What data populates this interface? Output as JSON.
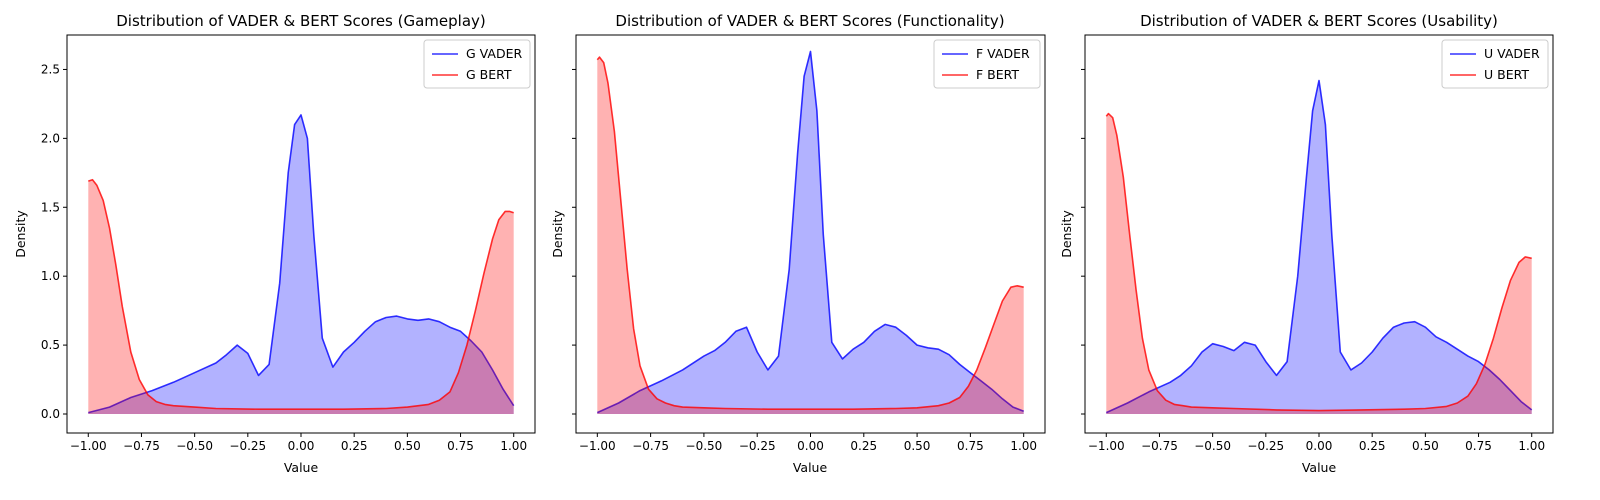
{
  "figure": {
    "panels": [
      {
        "title": "Distribution of VADER & BERT Scores (Gameplay)",
        "xlabel": "Value",
        "ylabel": "Density"
      },
      {
        "title": "Distribution of VADER & BERT Scores (Functionality)",
        "xlabel": "Value",
        "ylabel": "Density"
      },
      {
        "title": "Distribution of VADER & BERT Scores (Usability)",
        "xlabel": "Value",
        "ylabel": "Density"
      }
    ]
  },
  "chart_data": [
    {
      "type": "area",
      "title": "Distribution of VADER & BERT Scores (Gameplay)",
      "xlabel": "Value",
      "ylabel": "Density",
      "xlim": [
        -1.0,
        1.0
      ],
      "ylim": [
        0.0,
        2.75
      ],
      "xticks": [
        -1.0,
        -0.75,
        -0.5,
        -0.25,
        0.0,
        0.25,
        0.5,
        0.75,
        1.0
      ],
      "xtick_labels": [
        "−1.00",
        "−0.75",
        "−0.50",
        "−0.25",
        "0.00",
        "0.25",
        "0.50",
        "0.75",
        "1.00"
      ],
      "yticks": [
        0.0,
        0.5,
        1.0,
        1.5,
        2.0,
        2.5
      ],
      "ytick_labels": [
        "0.0",
        "0.5",
        "1.0",
        "1.5",
        "2.0",
        "2.5"
      ],
      "legend": "top-right",
      "grid": false,
      "series": [
        {
          "name": "G VADER",
          "color": "#0000ff",
          "fill": "#0000ff",
          "x": [
            -1.0,
            -0.9,
            -0.8,
            -0.7,
            -0.6,
            -0.5,
            -0.4,
            -0.35,
            -0.3,
            -0.25,
            -0.2,
            -0.15,
            -0.1,
            -0.06,
            -0.03,
            0.0,
            0.03,
            0.06,
            0.1,
            0.15,
            0.2,
            0.25,
            0.3,
            0.35,
            0.4,
            0.45,
            0.5,
            0.55,
            0.6,
            0.65,
            0.7,
            0.75,
            0.8,
            0.85,
            0.9,
            0.95,
            1.0
          ],
          "y": [
            0.01,
            0.05,
            0.12,
            0.17,
            0.23,
            0.3,
            0.37,
            0.43,
            0.5,
            0.44,
            0.28,
            0.36,
            0.95,
            1.75,
            2.1,
            2.17,
            2.0,
            1.3,
            0.55,
            0.34,
            0.45,
            0.52,
            0.6,
            0.67,
            0.7,
            0.71,
            0.69,
            0.68,
            0.69,
            0.67,
            0.63,
            0.6,
            0.53,
            0.45,
            0.32,
            0.18,
            0.06
          ]
        },
        {
          "name": "G BERT",
          "color": "#ff0000",
          "fill": "#ff0000",
          "x": [
            -1.0,
            -0.98,
            -0.96,
            -0.93,
            -0.9,
            -0.87,
            -0.84,
            -0.8,
            -0.76,
            -0.72,
            -0.68,
            -0.64,
            -0.6,
            -0.5,
            -0.4,
            -0.2,
            0.0,
            0.2,
            0.4,
            0.5,
            0.6,
            0.65,
            0.7,
            0.74,
            0.78,
            0.82,
            0.86,
            0.9,
            0.93,
            0.96,
            0.98,
            1.0
          ],
          "y": [
            1.69,
            1.7,
            1.66,
            1.55,
            1.35,
            1.08,
            0.78,
            0.45,
            0.25,
            0.14,
            0.09,
            0.07,
            0.06,
            0.05,
            0.04,
            0.035,
            0.035,
            0.035,
            0.04,
            0.05,
            0.07,
            0.1,
            0.16,
            0.3,
            0.5,
            0.75,
            1.02,
            1.27,
            1.41,
            1.47,
            1.47,
            1.46
          ]
        }
      ]
    },
    {
      "type": "area",
      "title": "Distribution of VADER & BERT Scores (Functionality)",
      "xlabel": "Value",
      "ylabel": "Density",
      "xlim": [
        -1.0,
        1.0
      ],
      "ylim": [
        0.0,
        2.75
      ],
      "xticks": [
        -1.0,
        -0.75,
        -0.5,
        -0.25,
        0.0,
        0.25,
        0.5,
        0.75,
        1.0
      ],
      "xtick_labels": [
        "−1.00",
        "−0.75",
        "−0.50",
        "−0.25",
        "0.00",
        "0.25",
        "0.50",
        "0.75",
        "1.00"
      ],
      "yticks": [
        0.0,
        0.5,
        1.0,
        1.5,
        2.0,
        2.5
      ],
      "ytick_labels": [],
      "legend": "top-right",
      "grid": false,
      "series": [
        {
          "name": "F VADER",
          "color": "#0000ff",
          "fill": "#0000ff",
          "x": [
            -1.0,
            -0.9,
            -0.8,
            -0.7,
            -0.6,
            -0.5,
            -0.45,
            -0.4,
            -0.35,
            -0.3,
            -0.25,
            -0.2,
            -0.15,
            -0.1,
            -0.06,
            -0.03,
            0.0,
            0.03,
            0.06,
            0.1,
            0.15,
            0.2,
            0.25,
            0.3,
            0.35,
            0.4,
            0.45,
            0.5,
            0.55,
            0.6,
            0.65,
            0.7,
            0.75,
            0.8,
            0.85,
            0.9,
            0.95,
            1.0
          ],
          "y": [
            0.01,
            0.08,
            0.17,
            0.24,
            0.32,
            0.42,
            0.46,
            0.52,
            0.6,
            0.63,
            0.45,
            0.32,
            0.42,
            1.05,
            1.9,
            2.45,
            2.63,
            2.2,
            1.3,
            0.52,
            0.4,
            0.47,
            0.52,
            0.6,
            0.65,
            0.63,
            0.57,
            0.5,
            0.48,
            0.47,
            0.43,
            0.36,
            0.3,
            0.24,
            0.18,
            0.11,
            0.05,
            0.02
          ]
        },
        {
          "name": "F BERT",
          "color": "#ff0000",
          "fill": "#ff0000",
          "x": [
            -1.0,
            -0.99,
            -0.97,
            -0.95,
            -0.92,
            -0.89,
            -0.86,
            -0.83,
            -0.8,
            -0.76,
            -0.72,
            -0.68,
            -0.64,
            -0.6,
            -0.5,
            -0.4,
            -0.2,
            0.0,
            0.2,
            0.4,
            0.5,
            0.6,
            0.65,
            0.7,
            0.74,
            0.78,
            0.82,
            0.86,
            0.9,
            0.94,
            0.97,
            1.0
          ],
          "y": [
            2.57,
            2.59,
            2.55,
            2.4,
            2.05,
            1.55,
            1.05,
            0.62,
            0.35,
            0.18,
            0.11,
            0.08,
            0.06,
            0.05,
            0.045,
            0.04,
            0.035,
            0.035,
            0.035,
            0.04,
            0.045,
            0.06,
            0.08,
            0.12,
            0.2,
            0.32,
            0.48,
            0.65,
            0.82,
            0.92,
            0.93,
            0.92
          ]
        }
      ]
    },
    {
      "type": "area",
      "title": "Distribution of VADER & BERT Scores (Usability)",
      "xlabel": "Value",
      "ylabel": "Density",
      "xlim": [
        -1.0,
        1.0
      ],
      "ylim": [
        0.0,
        2.75
      ],
      "xticks": [
        -1.0,
        -0.75,
        -0.5,
        -0.25,
        0.0,
        0.25,
        0.5,
        0.75,
        1.0
      ],
      "xtick_labels": [
        "−1.00",
        "−0.75",
        "−0.50",
        "−0.25",
        "0.00",
        "0.25",
        "0.50",
        "0.75",
        "1.00"
      ],
      "yticks": [
        0.0,
        0.5,
        1.0,
        1.5,
        2.0,
        2.5
      ],
      "ytick_labels": [],
      "legend": "top-right",
      "grid": false,
      "series": [
        {
          "name": "U VADER",
          "color": "#0000ff",
          "fill": "#0000ff",
          "x": [
            -1.0,
            -0.9,
            -0.8,
            -0.7,
            -0.65,
            -0.6,
            -0.55,
            -0.5,
            -0.45,
            -0.4,
            -0.35,
            -0.3,
            -0.25,
            -0.2,
            -0.15,
            -0.1,
            -0.06,
            -0.03,
            0.0,
            0.03,
            0.06,
            0.1,
            0.15,
            0.2,
            0.25,
            0.3,
            0.35,
            0.4,
            0.45,
            0.5,
            0.55,
            0.6,
            0.65,
            0.7,
            0.75,
            0.8,
            0.85,
            0.9,
            0.95,
            1.0
          ],
          "y": [
            0.01,
            0.08,
            0.16,
            0.23,
            0.28,
            0.35,
            0.45,
            0.51,
            0.49,
            0.46,
            0.52,
            0.5,
            0.38,
            0.28,
            0.38,
            1.0,
            1.7,
            2.2,
            2.42,
            2.1,
            1.3,
            0.45,
            0.32,
            0.37,
            0.45,
            0.55,
            0.63,
            0.66,
            0.67,
            0.63,
            0.56,
            0.52,
            0.47,
            0.42,
            0.38,
            0.32,
            0.25,
            0.17,
            0.09,
            0.03
          ]
        },
        {
          "name": "U BERT",
          "color": "#ff0000",
          "fill": "#ff0000",
          "x": [
            -1.0,
            -0.99,
            -0.97,
            -0.95,
            -0.92,
            -0.89,
            -0.86,
            -0.83,
            -0.8,
            -0.76,
            -0.72,
            -0.68,
            -0.64,
            -0.6,
            -0.5,
            -0.4,
            -0.2,
            0.0,
            0.2,
            0.4,
            0.5,
            0.6,
            0.65,
            0.7,
            0.74,
            0.78,
            0.82,
            0.86,
            0.9,
            0.94,
            0.97,
            1.0
          ],
          "y": [
            2.16,
            2.18,
            2.15,
            2.02,
            1.72,
            1.3,
            0.9,
            0.55,
            0.32,
            0.17,
            0.1,
            0.07,
            0.06,
            0.05,
            0.045,
            0.04,
            0.03,
            0.025,
            0.03,
            0.035,
            0.04,
            0.055,
            0.08,
            0.13,
            0.22,
            0.36,
            0.55,
            0.77,
            0.97,
            1.1,
            1.14,
            1.13
          ]
        }
      ]
    }
  ]
}
